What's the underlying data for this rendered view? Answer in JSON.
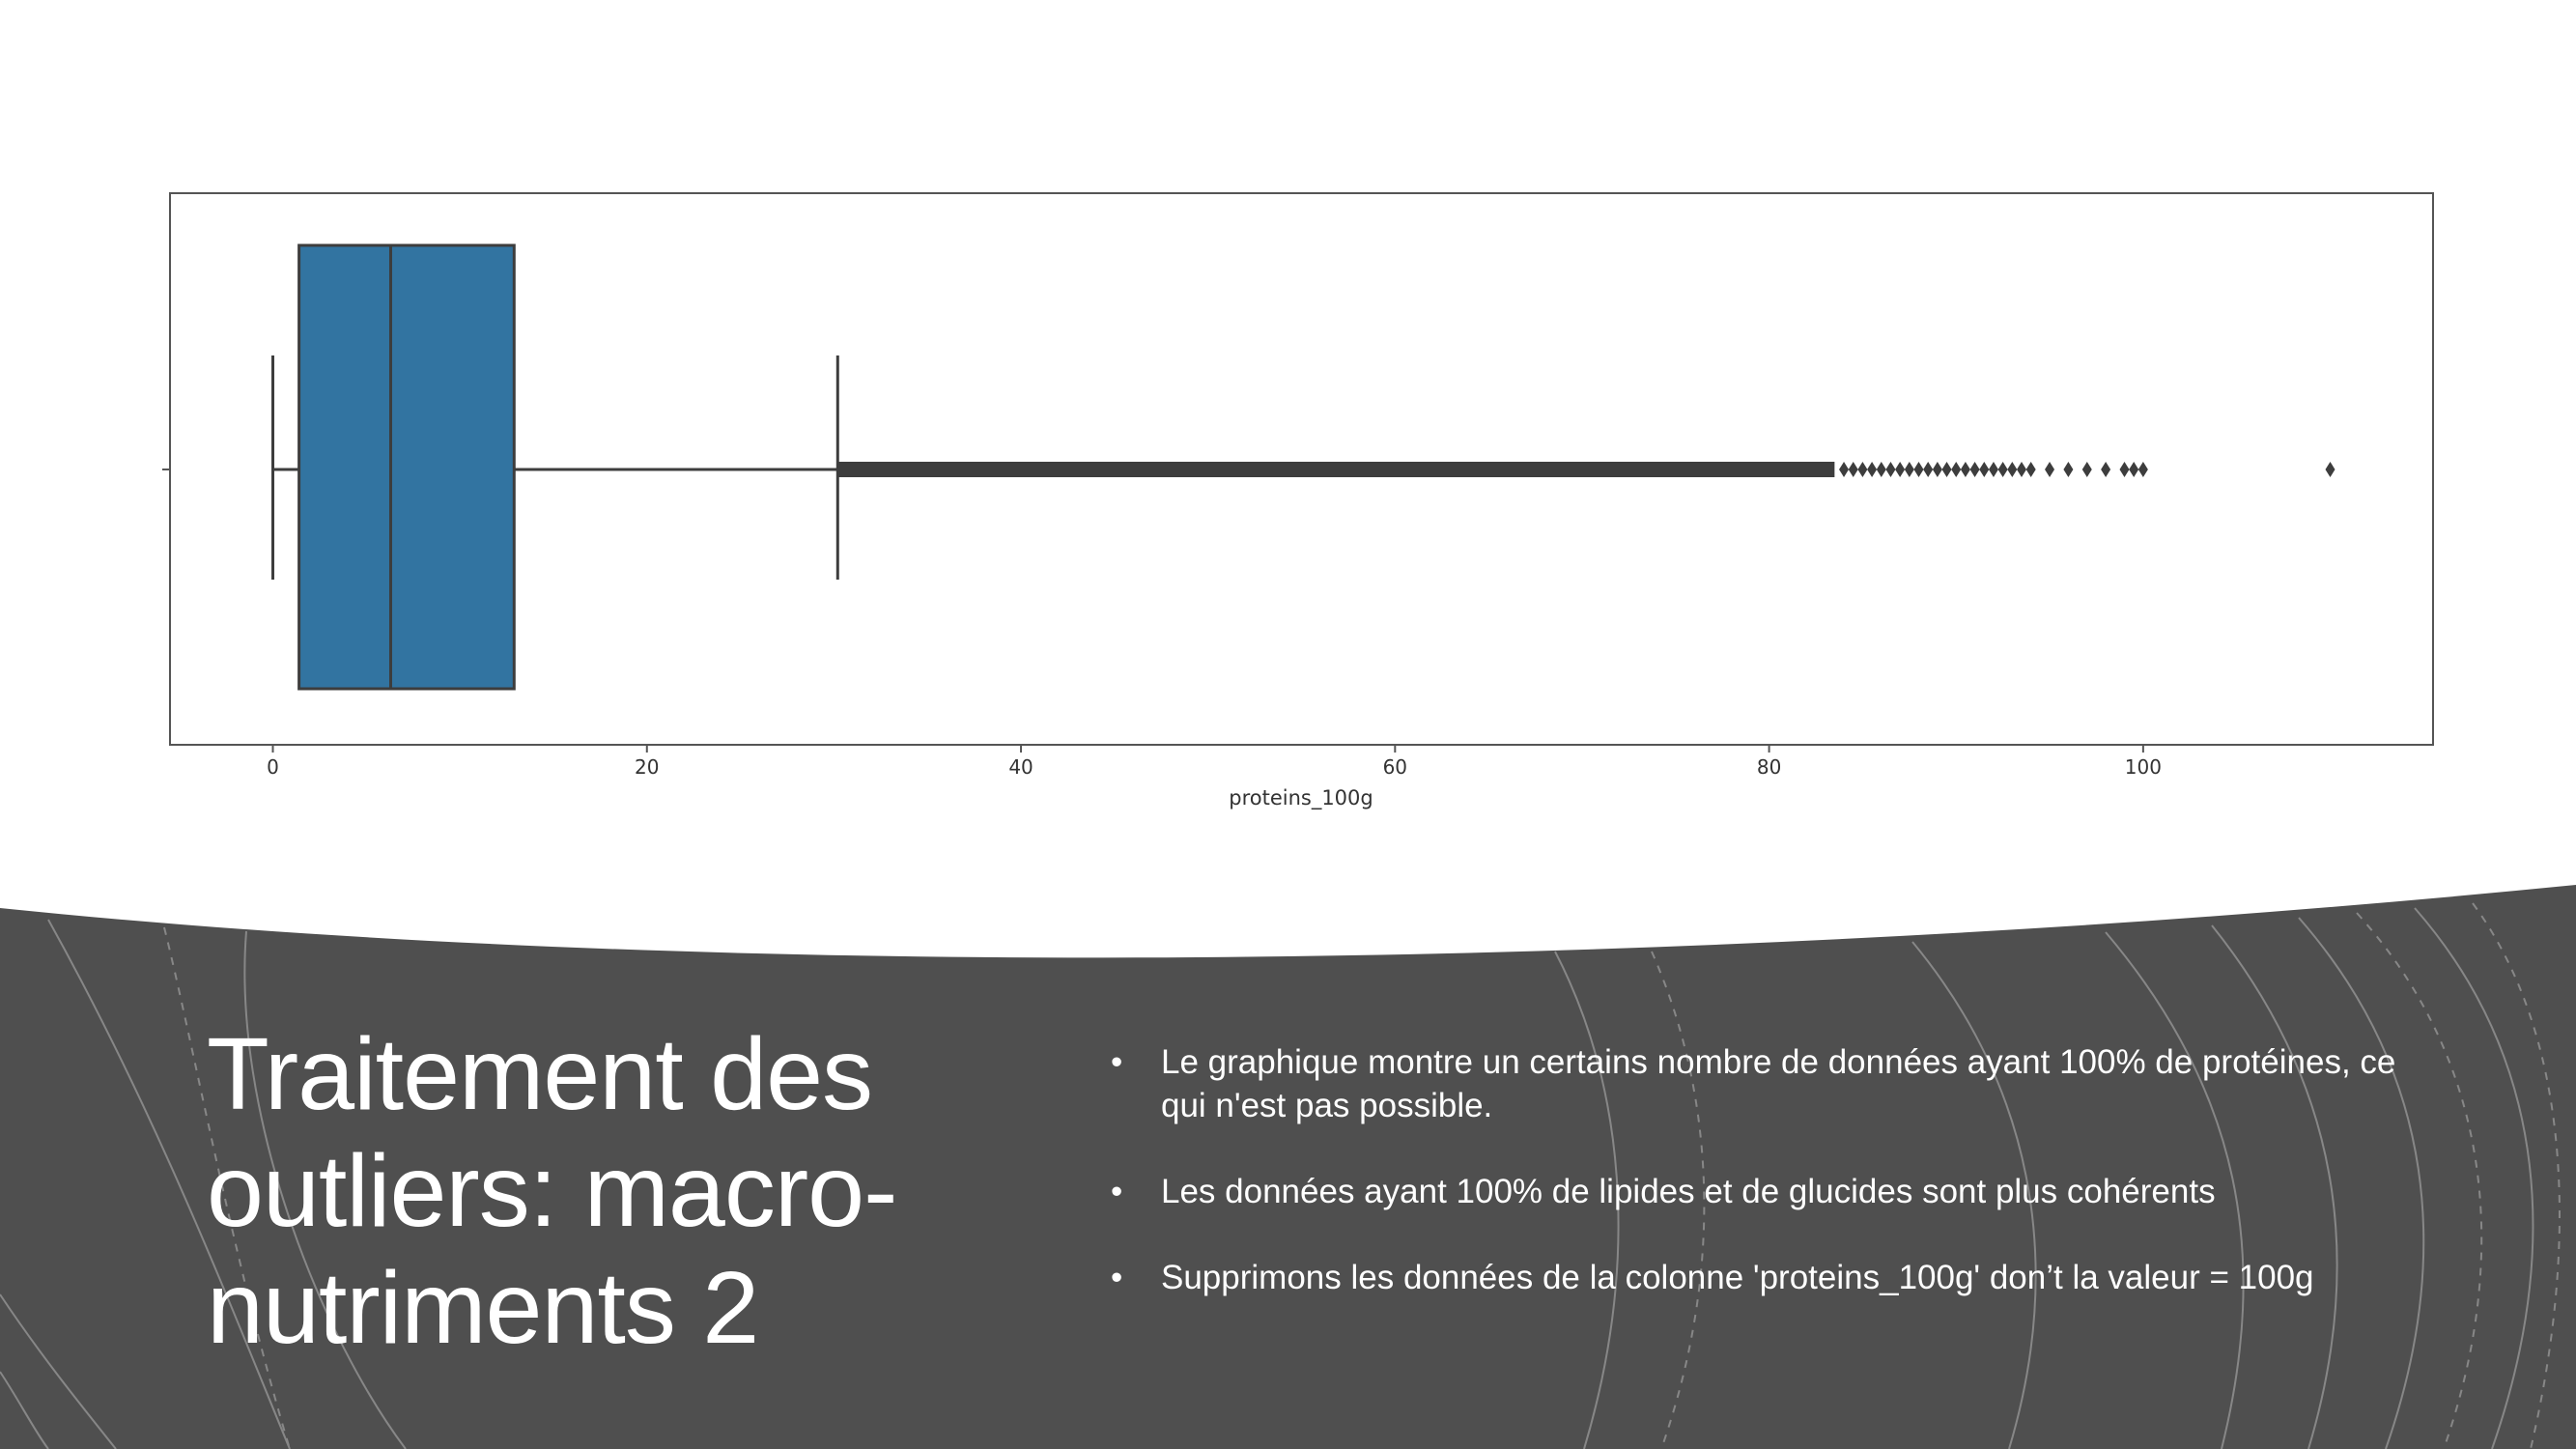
{
  "slide": {
    "title_lines": [
      "Traitement des",
      "outliers: macro-",
      "nutriments 2"
    ],
    "bullets": [
      "Le graphique montre un certains nombre de données ayant 100% de protéines, ce qui n'est pas possible.",
      "Les données ayant 100% de lipides et de glucides sont plus cohérents",
      "Supprimons les données de la colonne 'proteins_100g' don’t la valeur = 100g"
    ],
    "bullet_glyph": "•"
  },
  "colors": {
    "background": "#ffffff",
    "band": "#4f4f4f",
    "box_fill": "#3274a1",
    "line": "#3d3d3d"
  },
  "chart_data": {
    "type": "boxplot",
    "title": "",
    "xlabel": "proteins_100g",
    "ylabel": "",
    "xlim": [
      -5.5,
      115.5
    ],
    "xticks": [
      0,
      20,
      40,
      60,
      80,
      100
    ],
    "xtick_labels": [
      "0",
      "20",
      "40",
      "60",
      "80",
      "100"
    ],
    "grid": false,
    "series": [
      {
        "min": 0,
        "q1": 1.4,
        "median": 6.3,
        "q3": 12.9,
        "whisker_high": 30.2,
        "outlier_range_dense": [
          30.2,
          83.5
        ],
        "outliers_sparse": [
          84,
          84.5,
          85,
          85.5,
          86,
          86.5,
          87,
          87.5,
          88,
          88.5,
          89,
          89.5,
          90,
          90.5,
          91,
          91.5,
          92,
          92.5,
          93,
          93.5,
          94,
          95,
          96,
          97,
          98,
          99,
          99.5,
          100,
          110
        ]
      }
    ]
  }
}
